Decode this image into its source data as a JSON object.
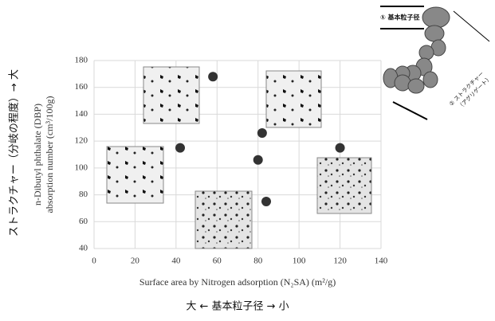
{
  "chart_data": {
    "type": "scatter",
    "x": [
      42,
      58,
      80,
      82,
      84,
      120
    ],
    "values": [
      115,
      168,
      106,
      126,
      75,
      115
    ],
    "color": "#333333",
    "xlim": [
      0,
      140
    ],
    "xticks": [
      0,
      20,
      40,
      60,
      80,
      100,
      120,
      140
    ],
    "ylim": [
      40,
      180
    ],
    "yticks": [
      40,
      60,
      80,
      100,
      120,
      140,
      160,
      180
    ],
    "grid": true,
    "x_label": "Surface area by Nitrogen adsorption (N₂SA) (m²/g)",
    "y_label": [
      "n-Dibutyl phthalate (DBP)",
      "absorption number (cm³/100g)"
    ],
    "left_annotation": "ストラクチャー（分岐の程度）→ 大",
    "bottom_annotation": "大 ← 基本粒子径 → 小",
    "diagram_labels": [
      "① 基本粒子径",
      "② ストラクチャー",
      "（アグリゲート）"
    ]
  }
}
